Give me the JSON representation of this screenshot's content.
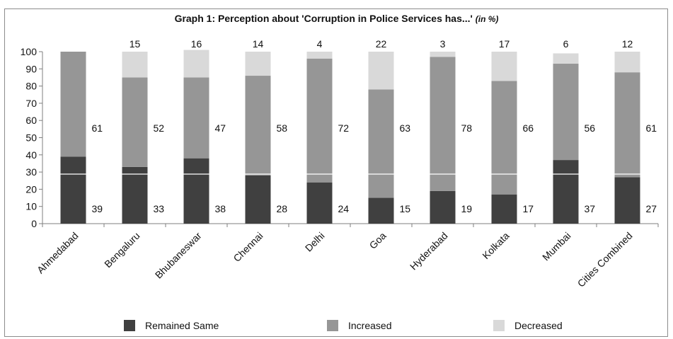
{
  "chart_data": {
    "type": "bar",
    "stacked": true,
    "title": "Graph 1: Perception about 'Corruption in Police Services has...'",
    "title_suffix": "(in %)",
    "categories": [
      "Ahmedabad",
      "Bengaluru",
      "Bhubaneswar",
      "Chennai",
      "Delhi",
      "Goa",
      "Hyderabad",
      "Kolkata",
      "Mumbai",
      "Cities Combined"
    ],
    "series": [
      {
        "name": "Remained Same",
        "color": "#404040",
        "values": [
          39,
          33,
          38,
          28,
          24,
          15,
          19,
          17,
          37,
          27
        ]
      },
      {
        "name": "Increased",
        "color": "#969696",
        "values": [
          61,
          52,
          47,
          58,
          72,
          63,
          78,
          66,
          56,
          61
        ]
      },
      {
        "name": "Decreased",
        "color": "#d9d9d9",
        "values": [
          0,
          15,
          16,
          14,
          4,
          22,
          3,
          17,
          6,
          12
        ]
      }
    ],
    "decreased_labels": [
      "",
      "15",
      "16",
      "14",
      "4",
      "22",
      "3",
      "17",
      "6",
      "12"
    ],
    "ylim": [
      0,
      100
    ],
    "yticks": [
      0,
      10,
      20,
      30,
      40,
      50,
      60,
      70,
      80,
      90,
      100
    ],
    "xlabel": "",
    "ylabel": "",
    "grid": false,
    "legend_position": "bottom"
  }
}
